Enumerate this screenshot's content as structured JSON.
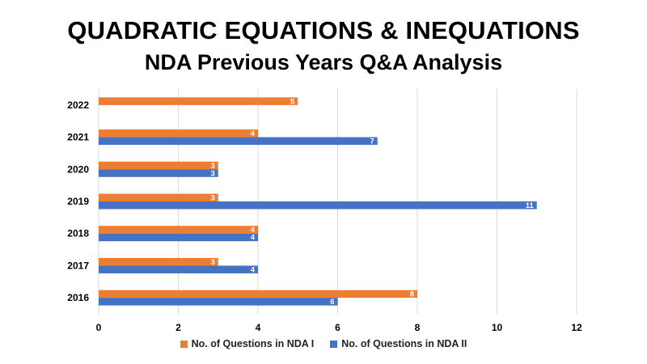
{
  "colors": {
    "series1": "#ED7D31",
    "series2": "#4472C4",
    "grid": "#D9D9D9",
    "axis_text": "#000000"
  },
  "chart_data": {
    "type": "bar",
    "orientation": "horizontal",
    "title": "QUADRATIC EQUATIONS & INEQUATIONS",
    "subtitle": "NDA Previous Years Q&A Analysis",
    "xlabel": "",
    "ylabel": "",
    "categories": [
      "2016",
      "2017",
      "2018",
      "2019",
      "2020",
      "2021",
      "2022"
    ],
    "series": [
      {
        "name": "No. of Questions in NDA I",
        "values": [
          8,
          3,
          4,
          3,
          3,
          4,
          5
        ]
      },
      {
        "name": "No. of Questions in NDA II",
        "values": [
          6,
          4,
          4,
          11,
          3,
          7,
          null
        ]
      }
    ],
    "xlim": [
      0,
      12
    ],
    "xticks": [
      0,
      2,
      4,
      6,
      8,
      10,
      12
    ],
    "grid": "vertical",
    "legend_position": "bottom",
    "data_labels": true
  }
}
